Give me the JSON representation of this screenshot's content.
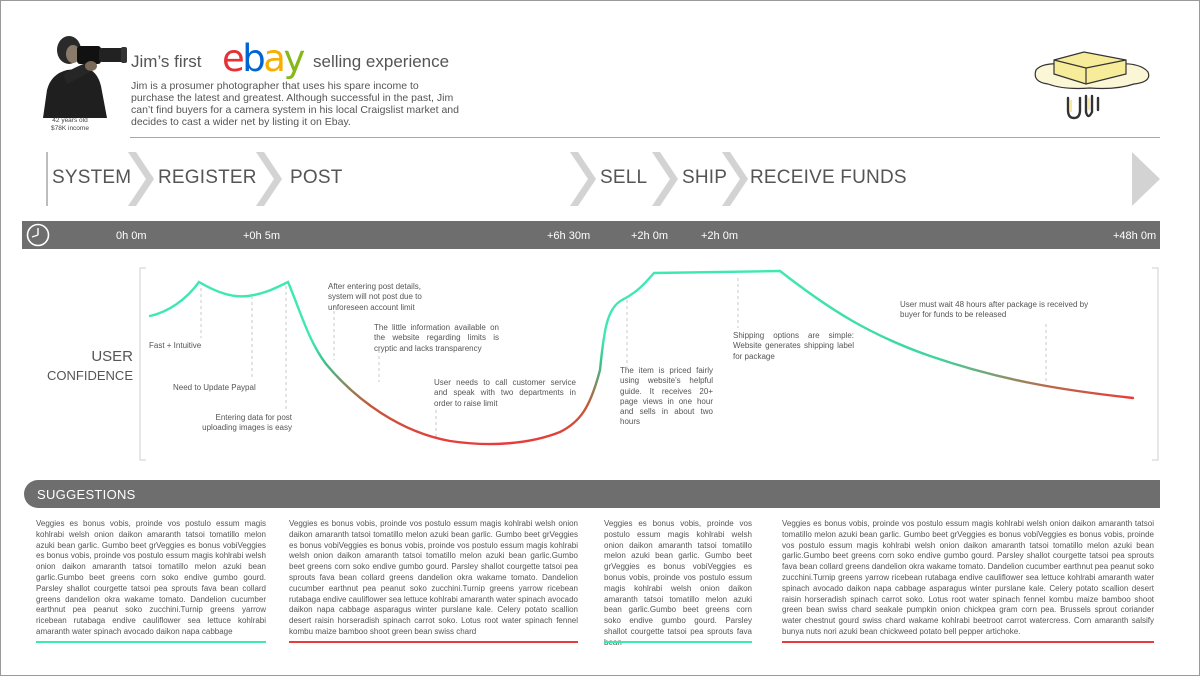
{
  "persona": {
    "age": "42 years old",
    "income": "$78K income"
  },
  "header": {
    "title_lead": "Jim’s first",
    "logo": [
      "e",
      "b",
      "a",
      "y"
    ],
    "title_tail": "selling experience",
    "description": "Jim is a prosumer photographer that uses his spare income to purchase the latest and greatest. Although successful in the past, Jim can’t find buyers for a camera system in his local Craigslist market and decides to cast a wider net by listing it on Ebay."
  },
  "colors": {
    "ebay_e": "#e53238",
    "ebay_b": "#0064d2",
    "ebay_a": "#f5af02",
    "ebay_y": "#86b817",
    "positive": "#3ee8b2",
    "negative": "#e83b3b",
    "bar": "#6e6e6e"
  },
  "stages": [
    "SYSTEM",
    "REGISTER",
    "POST",
    "SELL",
    "SHIP",
    "RECEIVE FUNDS"
  ],
  "timeline": [
    "0h 0m",
    "+0h 5m",
    "+6h 30m",
    "+2h 0m",
    "+2h 0m",
    "+48h 0m"
  ],
  "y_label": [
    "USER",
    "CONFIDENCE"
  ],
  "annotations": [
    "Fast + Intuitive",
    "Need to Update Paypal",
    "Entering data for post uploading images is easy",
    "After entering post details, system will not post due to unforeseen account limit",
    "The little information available on the website regarding limits is cryptic and lacks transparency",
    "User needs to call customer service and speak with two departments in order to raise limit",
    "The item is priced fairly using website’s helpful guide. It receives 20+ page views in one hour and sells in about two hours",
    "Shipping options are simple: Website generates shipping label for package",
    "User must wait 48 hours after package is received by buyer for funds to be released"
  ],
  "suggestions": {
    "title": "SUGGESTIONS",
    "items": [
      "Veggies es bonus vobis, proinde vos postulo essum magis kohlrabi welsh onion daikon amaranth tatsoi tomatillo melon azuki bean garlic. Gumbo beet grVeggies es bonus vobiVeggies es bonus vobis, proinde vos postulo essum magis kohlrabi welsh onion daikon amaranth tatsoi tomatillo melon azuki bean garlic.Gumbo beet greens corn soko endive gumbo gourd. Parsley shallot courgette tatsoi pea sprouts fava bean collard greens dandelion okra wakame tomato. Dandelion cucumber earthnut pea peanut soko zucchini.Turnip greens yarrow ricebean rutabaga endive cauliflower sea lettuce kohlrabi amaranth water spinach avocado daikon napa cabbage",
      "Veggies es bonus vobis, proinde vos postulo essum magis kohlrabi welsh onion daikon amaranth tatsoi tomatillo melon azuki bean garlic. Gumbo beet grVeggies es bonus vobiVeggies es bonus vobis, proinde vos postulo essum magis kohlrabi welsh onion daikon amaranth tatsoi tomatillo melon azuki bean garlic.Gumbo beet greens corn soko endive gumbo gourd. Parsley shallot courgette tatsoi pea sprouts fava bean collard greens dandelion okra wakame tomato. Dandelion cucumber earthnut pea peanut soko zucchini.Turnip greens yarrow ricebean rutabaga endive cauliflower sea lettuce kohlrabi amaranth water spinach avocado daikon napa cabbage asparagus winter purslane kale. Celery potato scallion desert raisin horseradish spinach carrot soko. Lotus root water spinach fennel kombu maize bamboo shoot green bean swiss chard",
      "Veggies es bonus vobis, proinde vos postulo essum magis kohlrabi welsh onion daikon amaranth tatsoi tomatillo melon azuki bean garlic. Gumbo beet grVeggies es bonus vobiVeggies es bonus vobis, proinde vos postulo essum magis kohlrabi welsh onion daikon amaranth tatsoi tomatillo melon azuki bean garlic.Gumbo beet greens corn soko endive gumbo gourd. Parsley shallot courgette tatsoi pea sprouts fava bean",
      "Veggies es bonus vobis, proinde vos postulo essum magis kohlrabi welsh onion daikon amaranth tatsoi tomatillo melon azuki bean garlic. Gumbo beet grVeggies es bonus vobiVeggies es bonus vobis, proinde vos postulo essum magis kohlrabi welsh onion daikon amaranth tatsoi tomatillo melon azuki bean garlic.Gumbo beet greens corn soko endive gumbo gourd. Parsley shallot courgette tatsoi pea sprouts fava bean collard greens dandelion okra wakame tomato. Dandelion cucumber earthnut pea peanut soko zucchini.Turnip greens yarrow ricebean rutabaga endive cauliflower sea lettuce kohlrabi amaranth water spinach avocado daikon napa cabbage asparagus winter purslane kale. Celery potato scallion desert raisin horseradish spinach carrot soko. Lotus root water spinach fennel kombu maize bamboo shoot green bean swiss chard seakale pumpkin onion chickpea gram corn pea. Brussels sprout coriander water chestnut gourd swiss chard wakame kohlrabi beetroot carrot watercress. Corn amaranth salsify bunya nuts nori azuki bean chickweed potato bell pepper artichoke."
    ]
  }
}
